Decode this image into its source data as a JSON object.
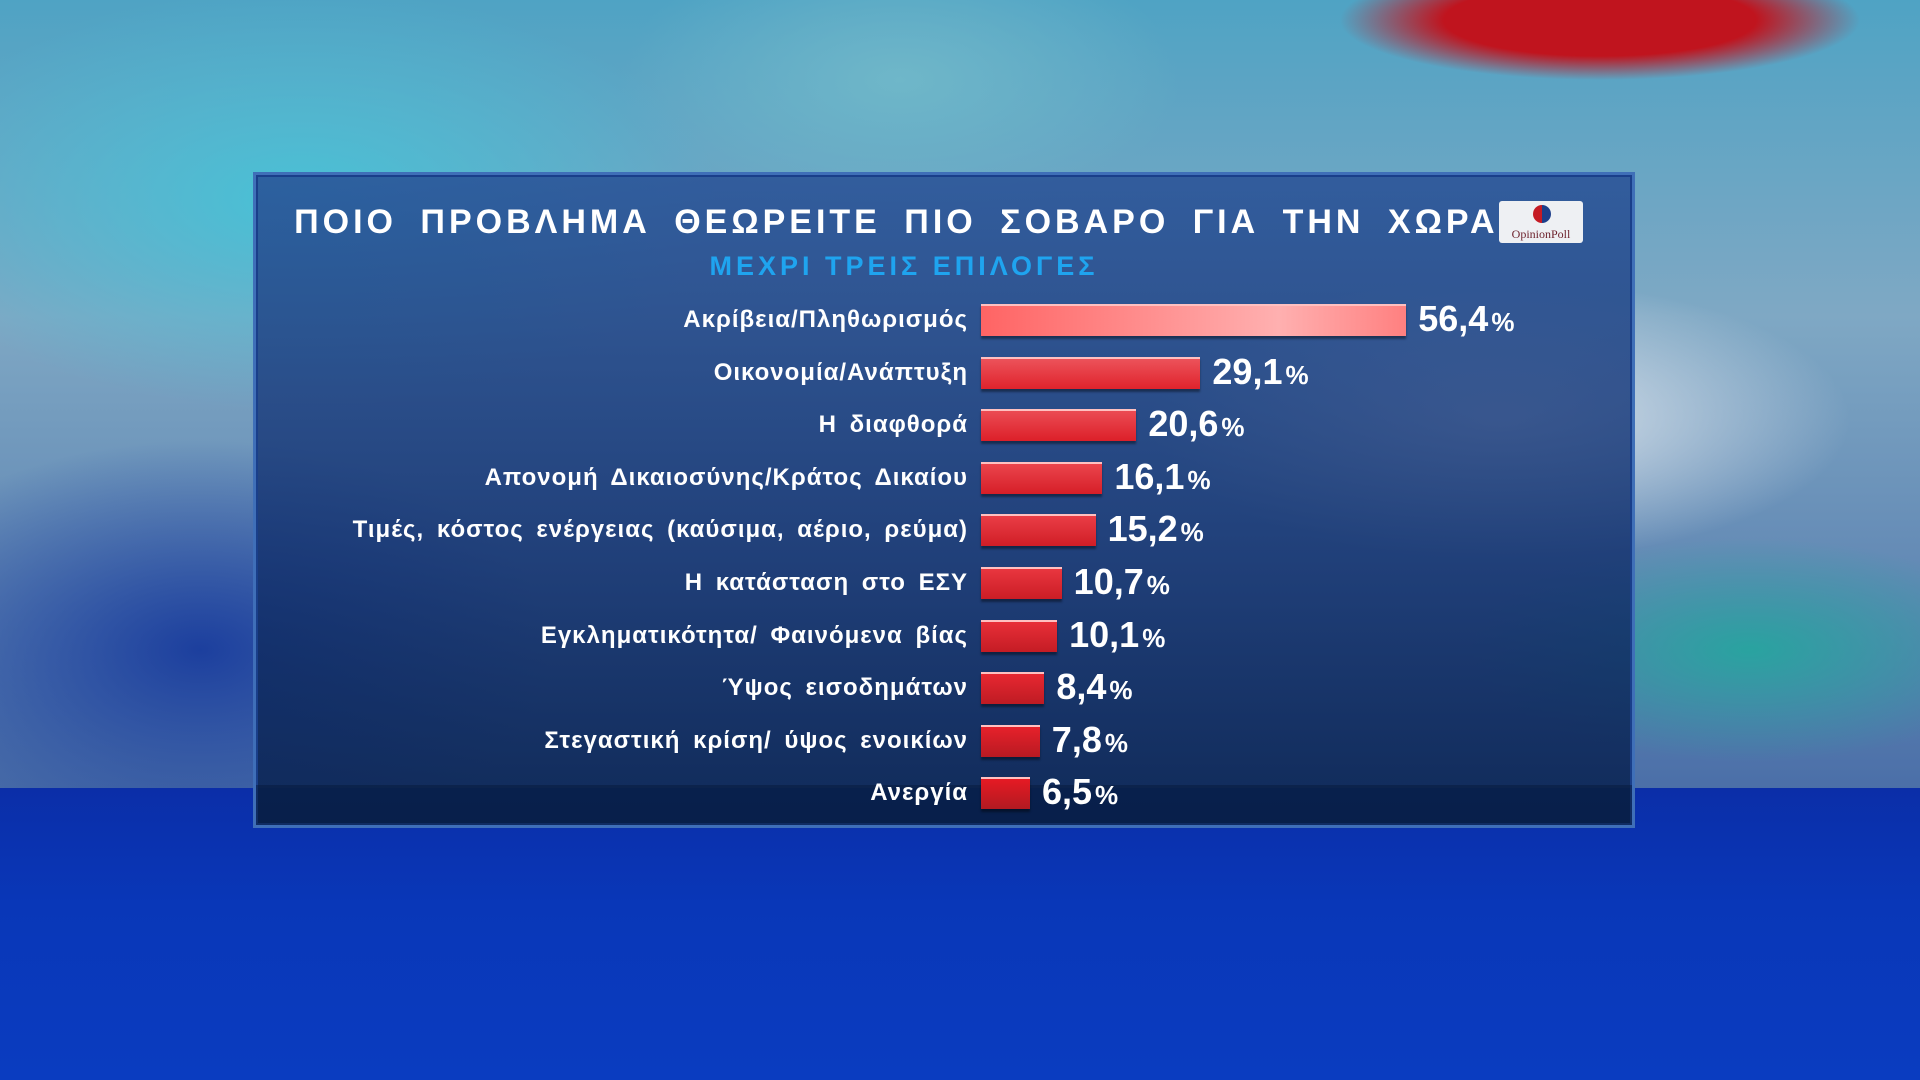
{
  "chart_data": {
    "type": "bar",
    "orientation": "horizontal",
    "title": "ΠΟΙΟ ΠΡΟΒΛΗΜΑ ΘΕΩΡΕΙΤΕ ΠΙΟ ΣΟΒΑΡΟ ΓΙΑ ΤΗΝ ΧΩΡΑ;",
    "subtitle": "ΜΕΧΡΙ ΤΡΕΙΣ ΕΠΙΛΟΓΕΣ",
    "unit": "%",
    "categories": [
      "Ακρίβεια/Πληθωρισμός",
      "Οικονομία/Ανάπτυξη",
      "Η διαφθορά",
      "Απονομή Δικαιοσύνης/Κράτος Δικαίου",
      "Τιμές, κόστος ενέργειας (καύσιμα, αέριο, ρεύμα)",
      "Η κατάσταση στο ΕΣΥ",
      "Εγκληματικότητα/ Φαινόμενα βίας",
      "Ύψος εισοδημάτων",
      "Στεγαστική κρίση/ ύψος ενοικίων",
      "Ανεργία"
    ],
    "values": [
      56.4,
      29.1,
      20.6,
      16.1,
      15.2,
      10.7,
      10.1,
      8.4,
      7.8,
      6.5
    ],
    "value_labels": [
      "56,4",
      "29,1",
      "20,6",
      "16,1",
      "15,2",
      "10,7",
      "10,1",
      "8,4",
      "7,8",
      "6,5"
    ],
    "bar_color_top": "#ff9a9a",
    "bar_color": "#d8232b"
  },
  "logo": {
    "text": "OpinionPoll"
  }
}
